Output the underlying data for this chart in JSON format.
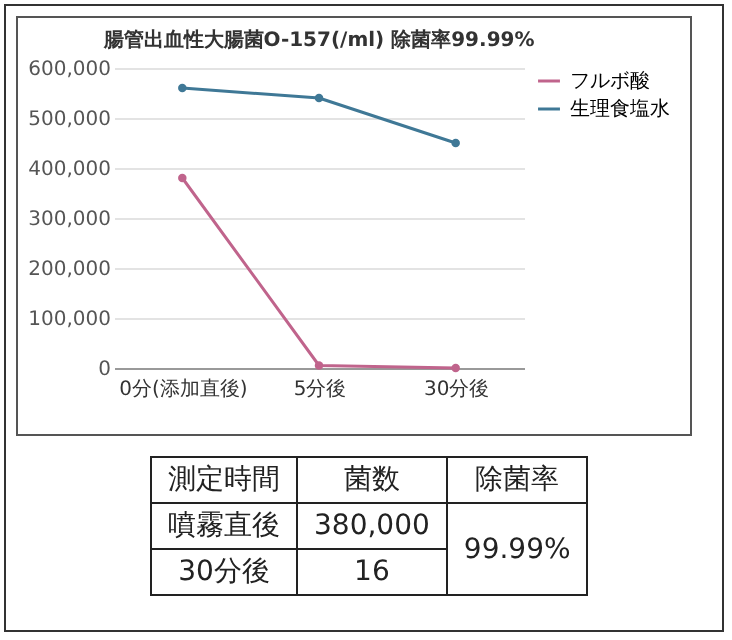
{
  "chart_data": {
    "type": "line",
    "title": "腸管出血性大腸菌O-157(/ml) 除菌率99.99%",
    "categories": [
      "0分(添加直後)",
      "5分後",
      "30分後"
    ],
    "series": [
      {
        "name": "フルボ酸",
        "color": "#c0648c",
        "values": [
          380000,
          5000,
          16
        ]
      },
      {
        "name": "生理食塩水",
        "color": "#3f7896",
        "values": [
          560000,
          540000,
          450000
        ]
      }
    ],
    "ylim": [
      0,
      600000
    ],
    "yticks": [
      0,
      {
        "value": 100000,
        "label": "100,000"
      },
      {
        "value": 200000,
        "label": "200,000"
      },
      {
        "value": 300000,
        "label": "300,000"
      },
      {
        "value": 400000,
        "label": "400,000"
      },
      {
        "value": 500000,
        "label": "500,000"
      },
      {
        "value": 600000,
        "label": "600,000"
      }
    ],
    "grid": "y",
    "legend": "right",
    "marker": "circle",
    "line_style": "solid",
    "annotations": [
      "測定時間",
      "菌数",
      "除菌率",
      "噴霧直後",
      "380,000",
      "99.99%",
      "30分後",
      "16"
    ]
  }
}
